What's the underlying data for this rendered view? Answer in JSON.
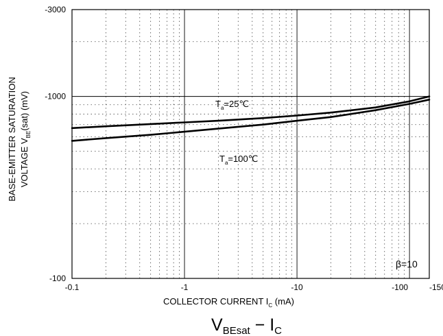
{
  "chart_data": {
    "type": "line",
    "title": "VBEsat − IC",
    "title_parts": {
      "main": "V",
      "sub": "BEsat",
      "dash": " − I",
      "sub2": "C"
    },
    "x_scale": "log",
    "y_scale": "log",
    "x_axis_reversed_sign": true,
    "xlim": [
      -0.1,
      -150
    ],
    "ylim": [
      -100,
      -3000
    ],
    "x_ticks": [
      {
        "value": -0.1,
        "label": "-0.1"
      },
      {
        "value": -1,
        "label": "-1"
      },
      {
        "value": -10,
        "label": "-10"
      },
      {
        "value": -100,
        "label": "-100"
      },
      {
        "value": -150,
        "label": "-150"
      }
    ],
    "y_ticks": [
      {
        "value": -100,
        "label": "-100"
      },
      {
        "value": -1000,
        "label": "-1000"
      },
      {
        "value": -3000,
        "label": "-3000"
      }
    ],
    "xlabel": {
      "main": "COLLECTOR CURRENT   I",
      "sub": "C",
      "unit": "   (mA)"
    },
    "ylabel_line1": "BASE-EMITTER SATURATION",
    "ylabel_line2": {
      "main": "VOLTAGE   V",
      "sub": "BE",
      "rest": "(sat)   (mV)"
    },
    "grid": true,
    "series": [
      {
        "name": "Ta=25°C",
        "label": {
          "main": "T",
          "sub": "a",
          "rest": "=25℃"
        },
        "color": "#000000",
        "x": [
          -0.1,
          -0.2,
          -0.5,
          -1,
          -2,
          -5,
          -10,
          -20,
          -50,
          -100,
          -150
        ],
        "y": [
          -670,
          -685,
          -705,
          -720,
          -735,
          -760,
          -785,
          -815,
          -870,
          -940,
          -1000
        ]
      },
      {
        "name": "Ta=100°C",
        "label": {
          "main": "T",
          "sub": "a",
          "rest": "=100℃"
        },
        "color": "#000000",
        "x": [
          -0.1,
          -0.2,
          -0.5,
          -1,
          -2,
          -5,
          -10,
          -20,
          -50,
          -100,
          -150
        ],
        "y": [
          -570,
          -590,
          -615,
          -640,
          -665,
          -700,
          -735,
          -770,
          -840,
          -910,
          -960
        ]
      }
    ],
    "annotation": "β=10"
  }
}
